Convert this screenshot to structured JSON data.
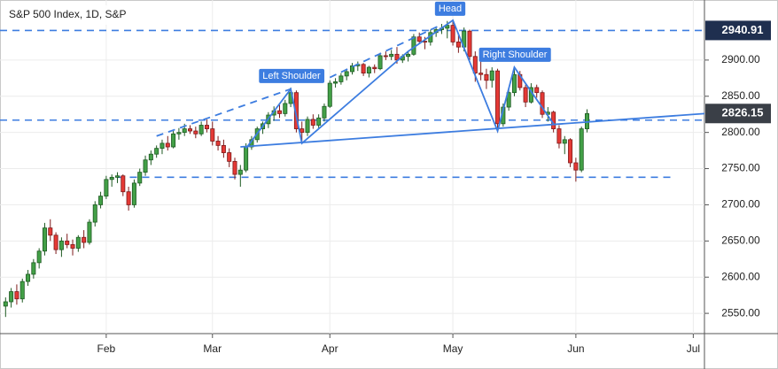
{
  "chart_data": {
    "type": "candlestick",
    "title": "S&P 500 Index, 1D, S&P",
    "xlim": [
      -1,
      125
    ],
    "xticks": [
      {
        "value": 18,
        "label": "Feb"
      },
      {
        "value": 37,
        "label": "Mar"
      },
      {
        "value": 58,
        "label": "Apr"
      },
      {
        "value": 80,
        "label": "May"
      },
      {
        "value": 102,
        "label": "Jun"
      },
      {
        "value": 123,
        "label": "Jul"
      }
    ],
    "ylim": [
      2522,
      2983
    ],
    "yticks": [
      {
        "value": 2550,
        "label": "2550.00"
      },
      {
        "value": 2600,
        "label": "2600.00"
      },
      {
        "value": 2650,
        "label": "2650.00"
      },
      {
        "value": 2700,
        "label": "2700.00"
      },
      {
        "value": 2750,
        "label": "2750.00"
      },
      {
        "value": 2800,
        "label": "2800.00"
      },
      {
        "value": 2850,
        "label": "2850.00"
      },
      {
        "value": 2900,
        "label": "2900.00"
      }
    ],
    "grid": true,
    "up_color": "#43a047",
    "down_color": "#e53935",
    "drawing_color": "#3d7de0",
    "ohlc": [
      [
        2560,
        2572,
        2545,
        2566
      ],
      [
        2566,
        2585,
        2558,
        2580
      ],
      [
        2580,
        2590,
        2562,
        2570
      ],
      [
        2570,
        2598,
        2565,
        2594
      ],
      [
        2594,
        2610,
        2588,
        2604
      ],
      [
        2604,
        2625,
        2598,
        2620
      ],
      [
        2620,
        2640,
        2612,
        2636
      ],
      [
        2636,
        2675,
        2630,
        2668
      ],
      [
        2668,
        2680,
        2650,
        2658
      ],
      [
        2658,
        2662,
        2632,
        2638
      ],
      [
        2638,
        2655,
        2628,
        2650
      ],
      [
        2650,
        2660,
        2640,
        2645
      ],
      [
        2645,
        2652,
        2630,
        2640
      ],
      [
        2640,
        2658,
        2635,
        2655
      ],
      [
        2655,
        2665,
        2640,
        2648
      ],
      [
        2648,
        2680,
        2645,
        2676
      ],
      [
        2676,
        2705,
        2670,
        2700
      ],
      [
        2700,
        2718,
        2695,
        2712
      ],
      [
        2712,
        2740,
        2708,
        2735
      ],
      [
        2735,
        2742,
        2725,
        2738
      ],
      [
        2738,
        2745,
        2730,
        2740
      ],
      [
        2740,
        2742,
        2712,
        2718
      ],
      [
        2718,
        2725,
        2692,
        2700
      ],
      [
        2700,
        2735,
        2696,
        2730
      ],
      [
        2730,
        2750,
        2726,
        2745
      ],
      [
        2745,
        2768,
        2740,
        2762
      ],
      [
        2762,
        2775,
        2755,
        2770
      ],
      [
        2770,
        2782,
        2765,
        2778
      ],
      [
        2778,
        2790,
        2770,
        2785
      ],
      [
        2785,
        2795,
        2775,
        2780
      ],
      [
        2780,
        2802,
        2778,
        2798
      ],
      [
        2798,
        2806,
        2790,
        2800
      ],
      [
        2800,
        2812,
        2795,
        2805
      ],
      [
        2805,
        2810,
        2798,
        2802
      ],
      [
        2802,
        2808,
        2792,
        2798
      ],
      [
        2798,
        2815,
        2795,
        2810
      ],
      [
        2810,
        2818,
        2800,
        2805
      ],
      [
        2805,
        2815,
        2782,
        2788
      ],
      [
        2788,
        2795,
        2775,
        2782
      ],
      [
        2782,
        2790,
        2765,
        2772
      ],
      [
        2772,
        2778,
        2752,
        2760
      ],
      [
        2760,
        2765,
        2735,
        2742
      ],
      [
        2742,
        2755,
        2725,
        2748
      ],
      [
        2748,
        2785,
        2745,
        2780
      ],
      [
        2780,
        2795,
        2776,
        2790
      ],
      [
        2790,
        2808,
        2786,
        2805
      ],
      [
        2805,
        2815,
        2798,
        2812
      ],
      [
        2812,
        2828,
        2806,
        2824
      ],
      [
        2824,
        2836,
        2816,
        2830
      ],
      [
        2830,
        2838,
        2820,
        2826
      ],
      [
        2826,
        2845,
        2822,
        2840
      ],
      [
        2840,
        2862,
        2835,
        2855
      ],
      [
        2855,
        2858,
        2800,
        2805
      ],
      [
        2805,
        2815,
        2785,
        2800
      ],
      [
        2800,
        2822,
        2795,
        2818
      ],
      [
        2818,
        2825,
        2805,
        2810
      ],
      [
        2810,
        2825,
        2806,
        2820
      ],
      [
        2820,
        2840,
        2815,
        2836
      ],
      [
        2836,
        2872,
        2834,
        2868
      ],
      [
        2868,
        2875,
        2862,
        2870
      ],
      [
        2870,
        2882,
        2866,
        2878
      ],
      [
        2878,
        2888,
        2872,
        2884
      ],
      [
        2884,
        2896,
        2880,
        2892
      ],
      [
        2892,
        2898,
        2885,
        2894
      ],
      [
        2894,
        2896,
        2878,
        2882
      ],
      [
        2882,
        2892,
        2876,
        2890
      ],
      [
        2890,
        2894,
        2882,
        2888
      ],
      [
        2888,
        2910,
        2886,
        2906
      ],
      [
        2906,
        2912,
        2900,
        2905
      ],
      [
        2905,
        2914,
        2900,
        2908
      ],
      [
        2908,
        2918,
        2895,
        2900
      ],
      [
        2900,
        2908,
        2896,
        2905
      ],
      [
        2905,
        2912,
        2898,
        2908
      ],
      [
        2908,
        2936,
        2906,
        2932
      ],
      [
        2932,
        2938,
        2922,
        2926
      ],
      [
        2926,
        2932,
        2915,
        2925
      ],
      [
        2925,
        2942,
        2920,
        2938
      ],
      [
        2938,
        2946,
        2932,
        2942
      ],
      [
        2942,
        2950,
        2936,
        2944
      ],
      [
        2944,
        2954,
        2930,
        2948
      ],
      [
        2948,
        2956,
        2920,
        2925
      ],
      [
        2925,
        2935,
        2910,
        2918
      ],
      [
        2918,
        2945,
        2912,
        2940
      ],
      [
        2940,
        2942,
        2900,
        2905
      ],
      [
        2905,
        2912,
        2870,
        2882
      ],
      [
        2882,
        2898,
        2872,
        2880
      ],
      [
        2880,
        2888,
        2860,
        2872
      ],
      [
        2872,
        2890,
        2862,
        2885
      ],
      [
        2885,
        2888,
        2800,
        2812
      ],
      [
        2812,
        2840,
        2808,
        2835
      ],
      [
        2835,
        2860,
        2830,
        2855
      ],
      [
        2855,
        2890,
        2850,
        2880
      ],
      [
        2880,
        2885,
        2858,
        2862
      ],
      [
        2862,
        2866,
        2835,
        2842
      ],
      [
        2842,
        2868,
        2840,
        2862
      ],
      [
        2862,
        2866,
        2848,
        2855
      ],
      [
        2855,
        2858,
        2820,
        2825
      ],
      [
        2825,
        2835,
        2815,
        2828
      ],
      [
        2828,
        2830,
        2800,
        2805
      ],
      [
        2805,
        2810,
        2778,
        2785
      ],
      [
        2785,
        2795,
        2770,
        2790
      ],
      [
        2790,
        2792,
        2752,
        2758
      ],
      [
        2758,
        2765,
        2732,
        2748
      ],
      [
        2748,
        2808,
        2745,
        2805
      ],
      [
        2805,
        2832,
        2800,
        2826
      ]
    ],
    "h_lines": [
      {
        "value": 2940.91,
        "tag": true
      },
      {
        "value": 2817
      },
      {
        "value": 2738,
        "from": 20,
        "to": 119
      }
    ],
    "last_price": 2826.15,
    "drawings": [
      {
        "style": "solid",
        "x": [
          42,
          125
        ],
        "y": [
          2780,
          2826
        ]
      },
      {
        "style": "solid",
        "x": [
          43,
          51,
          53,
          72,
          80,
          88,
          91,
          98
        ],
        "y": [
          2778,
          2860,
          2785,
          2912,
          2955,
          2802,
          2890,
          2812
        ]
      },
      {
        "style": "dashed",
        "x": [
          27,
          51
        ],
        "y": [
          2795,
          2860
        ]
      },
      {
        "style": "dashed",
        "x": [
          58,
          78
        ],
        "y": [
          2876,
          2949
        ]
      }
    ],
    "annotations": [
      "Left Shoulder",
      "Head",
      "Right Shoulder"
    ]
  }
}
